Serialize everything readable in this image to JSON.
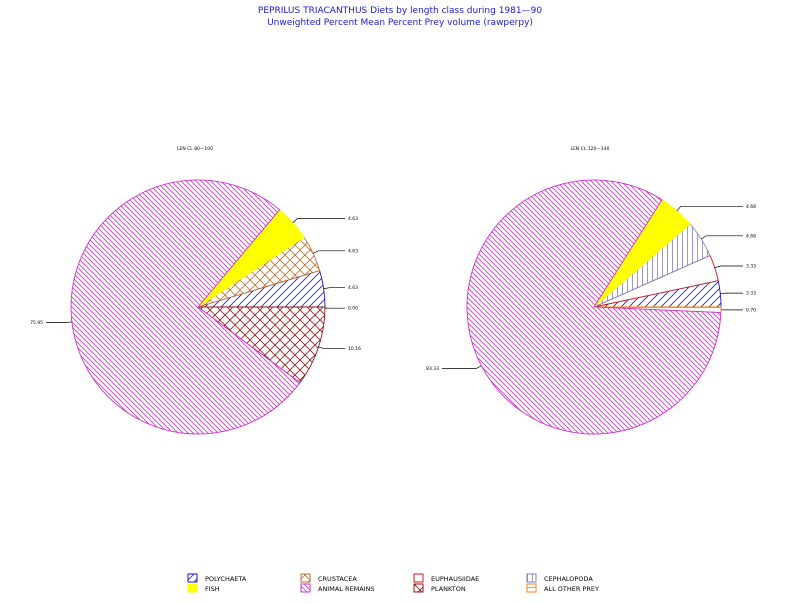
{
  "header": {
    "title": "PEPRILUS TRIACANTHUS Diets by length class during 1981—90",
    "subtitle": "Unweighted Percent Mean Percent Prey  volume (rawperpy)"
  },
  "colors": {
    "title": "#1a1ad0",
    "polychaeta": "#1a1ad0",
    "crustacea": "#b87333",
    "euphausiidae": "#d01a1a",
    "cephalopoda": "#8080c0",
    "fish": "#ffff00",
    "animal_remains": "#cc33cc",
    "plankton": "#8b1a1a",
    "all_other_prey": "#ff8000"
  },
  "legend": {
    "items": [
      {
        "key": "polychaeta",
        "label": "POLYCHAETA",
        "pattern": "diag-fwd",
        "color": "#1a1ad0"
      },
      {
        "key": "crustacea",
        "label": "CRUSTACEA",
        "pattern": "cross-hatch",
        "color": "#b87333"
      },
      {
        "key": "euphausiidae",
        "label": "EUPHAUSIIDAE",
        "pattern": "empty",
        "color": "#d01a1a"
      },
      {
        "key": "cephalopoda",
        "label": "CEPHALOPODA",
        "pattern": "vertical",
        "color": "#8080c0"
      },
      {
        "key": "fish",
        "label": "FISH",
        "pattern": "solid",
        "color": "#ffff00"
      },
      {
        "key": "animal_remains",
        "label": "ANIMAL REMAINS",
        "pattern": "diag-back",
        "color": "#cc33cc"
      },
      {
        "key": "plankton",
        "label": "PLANKTON",
        "pattern": "cross-hatch",
        "color": "#8b1a1a"
      },
      {
        "key": "all_other_prey",
        "label": "ALL OTHER PREY",
        "pattern": "horizontal",
        "color": "#ff8000"
      }
    ]
  },
  "chart_data": [
    {
      "type": "pie",
      "title": "LEN CL 80—100",
      "slices": [
        {
          "category": "fish",
          "value": 4.63,
          "label": "4.63"
        },
        {
          "category": "crustacea",
          "value": 4.63,
          "label": "4.63"
        },
        {
          "category": "polychaeta",
          "value": 4.63,
          "label": "4.63"
        },
        {
          "category": "all_other_prey",
          "value": 0.0,
          "label": "0.00"
        },
        {
          "category": "plankton",
          "value": 10.16,
          "label": "10.16"
        },
        {
          "category": "animal_remains",
          "value": 75.95,
          "label": "75.95"
        }
      ]
    },
    {
      "type": "pie",
      "title": "LEN CL 120—140",
      "slices": [
        {
          "category": "fish",
          "value": 4.68,
          "label": "4.68"
        },
        {
          "category": "cephalopoda",
          "value": 4.68,
          "label": "4.68"
        },
        {
          "category": "euphausiidae",
          "value": 3.33,
          "label": "3.33"
        },
        {
          "category": "polychaeta",
          "value": 3.33,
          "label": "3.33"
        },
        {
          "category": "all_other_prey",
          "value": 0.7,
          "label": "0.70"
        },
        {
          "category": "animal_remains",
          "value": 83.33,
          "label": "83.33"
        }
      ]
    }
  ]
}
